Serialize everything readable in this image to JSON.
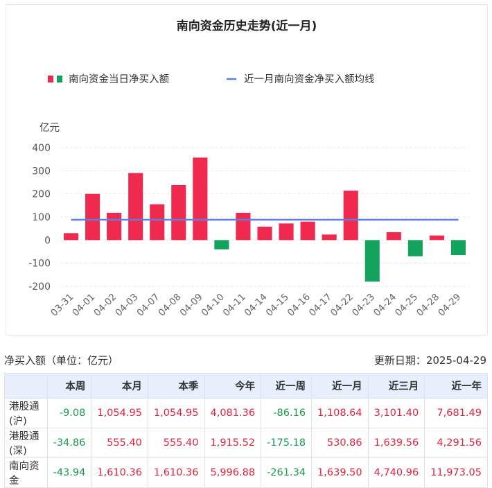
{
  "chart_data": {
    "type": "bar",
    "title": "南向资金历史走势(近一月)",
    "ylabel": "亿元",
    "ylim": [
      -200,
      400
    ],
    "yticks": [
      400,
      300,
      200,
      100,
      0,
      -100,
      -200
    ],
    "categories": [
      "03-31",
      "04-01",
      "04-02",
      "04-03",
      "04-07",
      "04-08",
      "04-09",
      "04-10",
      "04-11",
      "04-14",
      "04-15",
      "04-16",
      "04-17",
      "04-22",
      "04-23",
      "04-24",
      "04-25",
      "04-28",
      "04-29"
    ],
    "series": [
      {
        "name": "南向资金当日净买入额",
        "kind": "bar",
        "values": [
          30,
          200,
          118,
          290,
          155,
          238,
          357,
          -40,
          118,
          58,
          72,
          80,
          24,
          214,
          -180,
          34,
          -70,
          20,
          -65
        ]
      },
      {
        "name": "近一月南向资金净买入额均线",
        "kind": "line",
        "value": 88
      }
    ],
    "colors": {
      "positive": "#f0294e",
      "negative": "#14a35c",
      "line": "#5b7ee0"
    },
    "grid": true,
    "legend": "top"
  },
  "meta": {
    "left": "净买入额（单位：亿元）",
    "right": "更新日期：2025-04-29"
  },
  "table": {
    "columns": [
      "本周",
      "本月",
      "本季",
      "今年",
      "近一周",
      "近一月",
      "近三月",
      "近一年"
    ],
    "rows": [
      {
        "label": "港股通(沪)",
        "cells": [
          {
            "text": "-9.08",
            "sign": "neg"
          },
          {
            "text": "1,054.95",
            "sign": "pos"
          },
          {
            "text": "1,054.95",
            "sign": "pos"
          },
          {
            "text": "4,081.36",
            "sign": "pos"
          },
          {
            "text": "-86.16",
            "sign": "neg"
          },
          {
            "text": "1,108.64",
            "sign": "pos"
          },
          {
            "text": "3,101.40",
            "sign": "pos"
          },
          {
            "text": "7,681.49",
            "sign": "pos"
          }
        ]
      },
      {
        "label": "港股通(深)",
        "cells": [
          {
            "text": "-34.86",
            "sign": "neg"
          },
          {
            "text": "555.40",
            "sign": "pos"
          },
          {
            "text": "555.40",
            "sign": "pos"
          },
          {
            "text": "1,915.52",
            "sign": "pos"
          },
          {
            "text": "-175.18",
            "sign": "neg"
          },
          {
            "text": "530.86",
            "sign": "pos"
          },
          {
            "text": "1,639.56",
            "sign": "pos"
          },
          {
            "text": "4,291.56",
            "sign": "pos"
          }
        ]
      },
      {
        "label": "南向资金",
        "cells": [
          {
            "text": "-43.94",
            "sign": "neg"
          },
          {
            "text": "1,610.36",
            "sign": "pos"
          },
          {
            "text": "1,610.36",
            "sign": "pos"
          },
          {
            "text": "5,996.88",
            "sign": "pos"
          },
          {
            "text": "-261.34",
            "sign": "neg"
          },
          {
            "text": "1,639.50",
            "sign": "pos"
          },
          {
            "text": "4,740.96",
            "sign": "pos"
          },
          {
            "text": "11,973.05",
            "sign": "pos"
          }
        ]
      }
    ]
  }
}
